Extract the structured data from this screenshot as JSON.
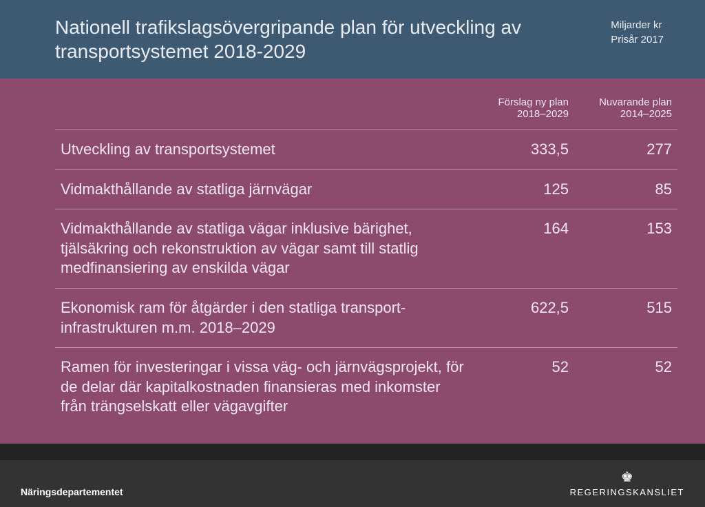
{
  "header": {
    "title": "Nationell trafikslagsövergripande plan för utveckling av transportsystemet 2018-2029",
    "meta_line1": "Miljarder kr",
    "meta_line2": "Prisår 2017"
  },
  "table": {
    "col1_header_line1": "Förslag ny plan",
    "col1_header_line2": "2018–2029",
    "col2_header_line1": "Nuvarande plan",
    "col2_header_line2": "2014–2025",
    "rows": [
      {
        "label": "Utveckling av transportsystemet",
        "v1": "333,5",
        "v2": "277"
      },
      {
        "label": "Vidmakthållande av statliga järnvägar",
        "v1": "125",
        "v2": "85"
      },
      {
        "label": "Vidmakthållande av statliga vägar inklusive bärighet, tjälsäkring och rekonstruktion av vägar samt till statlig medfinansiering av enskilda vägar",
        "v1": "164",
        "v2": "153"
      },
      {
        "label": "Ekonomisk ram för åtgärder i den statliga transport-infrastrukturen m.m. 2018–2029",
        "v1": "622,5",
        "v2": "515"
      },
      {
        "label": "Ramen för investeringar i vissa väg- och järnvägsprojekt, för de delar där kapitalkostnaden finansieras med inkomster\nfrån trängselskatt eller vägavgifter",
        "v1": "52",
        "v2": "52"
      }
    ]
  },
  "footer": {
    "department": "Näringsdepartementet",
    "logo_text": "REGERINGSKANSLIET"
  },
  "colors": {
    "header_bg": "#3e5a73",
    "body_bg": "#8c4a6c",
    "footer_bg": "#333333",
    "footer_top_strip": "#222424",
    "text_light": "#f2e6ed",
    "divider": "rgba(255,255,255,0.4)"
  },
  "typography": {
    "title_fontsize": 28,
    "meta_fontsize": 15,
    "th_fontsize": 15,
    "td_fontsize": 22,
    "dept_fontsize": 14,
    "logo_fontsize": 13
  }
}
